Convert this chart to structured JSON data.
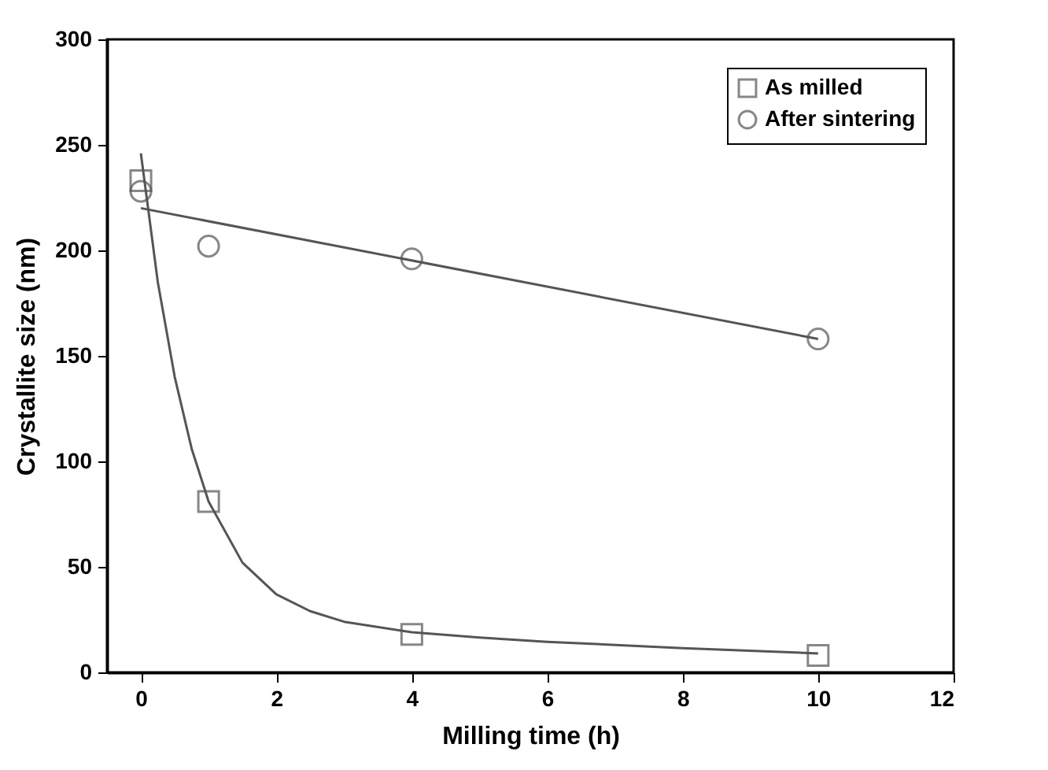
{
  "chart_data": {
    "type": "scatter",
    "xlabel": "Milling time (h)",
    "ylabel": "Crystallite size (nm)",
    "xlim": [
      -0.5,
      12
    ],
    "xticks": [
      0,
      2,
      4,
      6,
      8,
      10,
      12
    ],
    "ylim": [
      0,
      300
    ],
    "yticks": [
      0,
      50,
      100,
      150,
      200,
      250,
      300
    ],
    "legend": "top right",
    "grid": false,
    "series": [
      {
        "name": "As milled",
        "marker": "square",
        "color": "#555555",
        "x": [
          0,
          1,
          4,
          10
        ],
        "values": [
          233,
          81,
          18,
          8
        ]
      },
      {
        "name": "After sintering",
        "marker": "circle",
        "color": "#555555",
        "x": [
          0,
          1,
          4,
          10
        ],
        "values": [
          228,
          202,
          196,
          158
        ]
      },
      {
        "type": "line",
        "marker": "none",
        "color": "#555555",
        "x": [
          0,
          0.25,
          0.5,
          0.75,
          1,
          1.5,
          2,
          2.5,
          3,
          4,
          5,
          6,
          8,
          10
        ],
        "values": [
          246,
          185,
          140,
          106,
          81,
          52,
          37,
          29,
          24,
          19,
          16.5,
          14.5,
          11.5,
          9
        ]
      },
      {
        "type": "line",
        "marker": "none",
        "color": "#555555",
        "x": [
          0,
          10
        ],
        "values": [
          220,
          158
        ]
      }
    ]
  }
}
